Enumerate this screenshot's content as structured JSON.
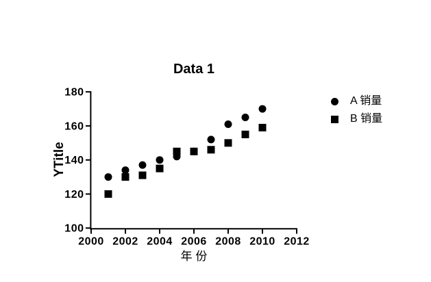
{
  "chart_data": {
    "type": "scatter",
    "title": "Data 1",
    "xlabel": "年 份",
    "ylabel": "YTitle",
    "x": [
      2001,
      2002,
      2003,
      2004,
      2005,
      2006,
      2007,
      2008,
      2009,
      2010
    ],
    "series": [
      {
        "name": "A 销量",
        "marker": "circle",
        "color": "#000000",
        "values": [
          130,
          134,
          137,
          140,
          142,
          145,
          152,
          161,
          165,
          170
        ]
      },
      {
        "name": "B 销量",
        "marker": "square",
        "color": "#000000",
        "values": [
          120,
          130,
          131,
          135,
          145,
          145,
          146,
          150,
          155,
          159
        ]
      }
    ],
    "xlim": [
      2000,
      2012
    ],
    "ylim": [
      100,
      180
    ],
    "x_ticks": [
      2000,
      2002,
      2004,
      2006,
      2008,
      2010,
      2012
    ],
    "y_ticks": [
      100,
      120,
      140,
      160,
      180
    ],
    "grid": false,
    "legend_position": "right",
    "axis_color": "#000000",
    "background": "#ffffff",
    "marker_size_px": 11
  }
}
